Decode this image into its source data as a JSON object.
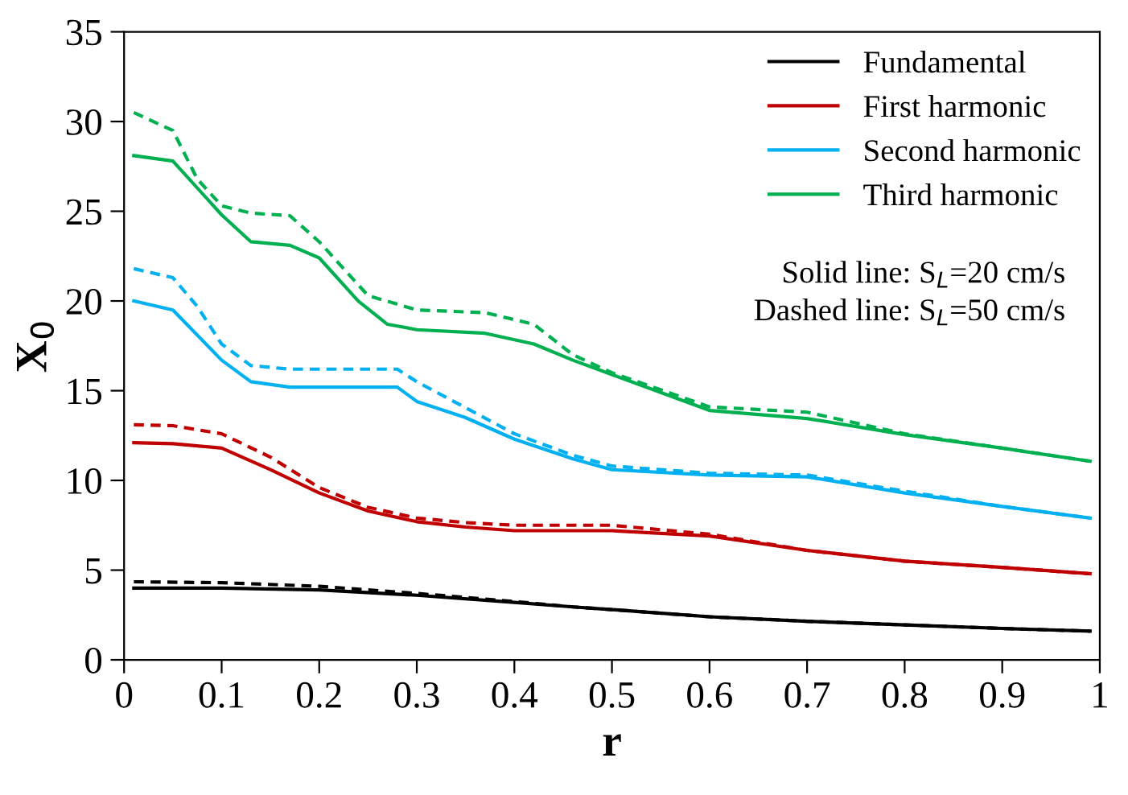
{
  "chart_data": {
    "type": "line",
    "xlabel": "r",
    "ylabel": "X$_{0}$",
    "xlim": [
      0,
      1
    ],
    "ylim": [
      0,
      35
    ],
    "xticks": [
      0,
      0.1,
      0.2,
      0.3,
      0.4,
      0.5,
      0.6,
      0.7,
      0.8,
      0.9,
      1
    ],
    "yticks": [
      0,
      5,
      10,
      15,
      20,
      25,
      30,
      35
    ],
    "grid": false,
    "legend": "top right",
    "marker": "none",
    "annotations": [
      "Solid line: S$_{L}$=20 cm/s",
      "Dashed line: S$_{L}$=50 cm/s"
    ],
    "series": [
      {
        "name": "Fundamental",
        "color": "#000000",
        "line_style": "solid",
        "x": [
          0.01,
          0.1,
          0.2,
          0.3,
          0.4,
          0.46,
          0.5,
          0.6,
          0.7,
          0.8,
          0.9,
          0.99
        ],
        "values": [
          4.0,
          4.0,
          3.9,
          3.6,
          3.2,
          2.95,
          2.8,
          2.4,
          2.15,
          1.95,
          1.75,
          1.6
        ]
      },
      {
        "name": "First harmonic",
        "color": "#c00000",
        "line_style": "solid",
        "x": [
          0.01,
          0.05,
          0.1,
          0.15,
          0.2,
          0.25,
          0.3,
          0.35,
          0.4,
          0.5,
          0.6,
          0.7,
          0.8,
          0.9,
          0.99
        ],
        "values": [
          12.1,
          12.05,
          11.8,
          10.6,
          9.3,
          8.3,
          7.7,
          7.4,
          7.2,
          7.2,
          6.9,
          6.1,
          5.5,
          5.15,
          4.8
        ]
      },
      {
        "name": "Second harmonic",
        "color": "#00b0f0",
        "line_style": "solid",
        "x": [
          0.01,
          0.05,
          0.1,
          0.13,
          0.17,
          0.28,
          0.3,
          0.35,
          0.4,
          0.46,
          0.5,
          0.6,
          0.7,
          0.8,
          0.9,
          0.99
        ],
        "values": [
          20.0,
          19.5,
          16.7,
          15.5,
          15.2,
          15.2,
          14.4,
          13.5,
          12.3,
          11.2,
          10.6,
          10.3,
          10.2,
          9.3,
          8.55,
          7.9
        ]
      },
      {
        "name": "Third harmonic",
        "color": "#00b050",
        "line_style": "solid",
        "x": [
          0.01,
          0.05,
          0.1,
          0.13,
          0.17,
          0.2,
          0.24,
          0.27,
          0.3,
          0.37,
          0.42,
          0.46,
          0.5,
          0.6,
          0.7,
          0.8,
          0.9,
          0.99
        ],
        "values": [
          28.1,
          27.8,
          24.8,
          23.3,
          23.1,
          22.4,
          20.0,
          18.7,
          18.4,
          18.2,
          17.6,
          16.7,
          15.9,
          13.9,
          13.45,
          12.55,
          11.8,
          11.07
        ]
      },
      {
        "color": "#000000",
        "line_style": "dashed",
        "x": [
          0.01,
          0.1,
          0.2,
          0.3,
          0.4,
          0.46,
          0.5,
          0.6,
          0.7,
          0.8,
          0.9,
          0.99
        ],
        "values": [
          4.35,
          4.3,
          4.1,
          3.7,
          3.25,
          2.95,
          2.8,
          2.4,
          2.15,
          1.95,
          1.75,
          1.6
        ]
      },
      {
        "color": "#c00000",
        "line_style": "dashed",
        "x": [
          0.01,
          0.05,
          0.1,
          0.15,
          0.2,
          0.25,
          0.3,
          0.35,
          0.4,
          0.5,
          0.6,
          0.7,
          0.8,
          0.9,
          0.99
        ],
        "values": [
          13.1,
          13.05,
          12.6,
          11.3,
          9.6,
          8.5,
          7.9,
          7.65,
          7.5,
          7.5,
          7.0,
          6.1,
          5.5,
          5.15,
          4.8
        ]
      },
      {
        "color": "#00b0f0",
        "line_style": "dashed",
        "x": [
          0.01,
          0.05,
          0.075,
          0.1,
          0.13,
          0.17,
          0.28,
          0.3,
          0.35,
          0.4,
          0.46,
          0.5,
          0.6,
          0.7,
          0.8,
          0.9,
          0.99
        ],
        "values": [
          21.8,
          21.3,
          19.7,
          17.6,
          16.4,
          16.2,
          16.2,
          15.5,
          14.05,
          12.6,
          11.4,
          10.8,
          10.4,
          10.3,
          9.4,
          8.55,
          7.9
        ]
      },
      {
        "color": "#00b050",
        "line_style": "dashed",
        "x": [
          0.01,
          0.05,
          0.075,
          0.1,
          0.13,
          0.17,
          0.2,
          0.25,
          0.3,
          0.37,
          0.42,
          0.46,
          0.5,
          0.6,
          0.7,
          0.8,
          0.9,
          0.99
        ],
        "values": [
          30.5,
          29.5,
          26.8,
          25.3,
          24.9,
          24.75,
          23.3,
          20.3,
          19.5,
          19.35,
          18.7,
          17.0,
          16.0,
          14.1,
          13.8,
          12.6,
          11.8,
          11.07
        ]
      }
    ]
  }
}
